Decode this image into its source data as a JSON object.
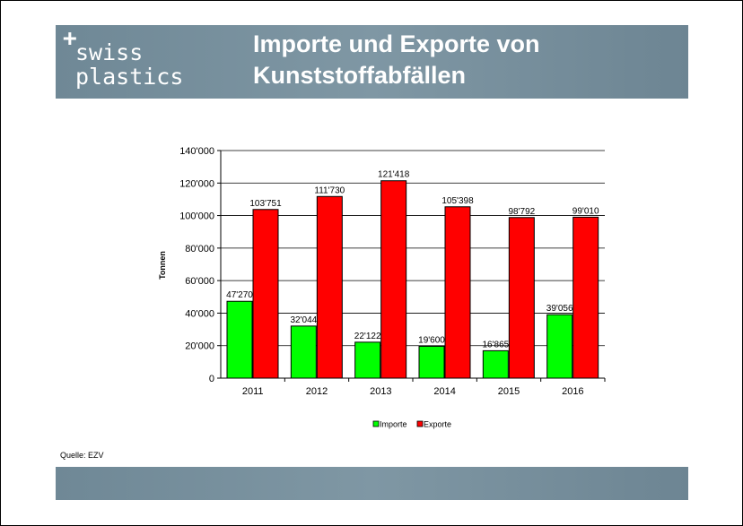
{
  "header": {
    "logo_plus": "+",
    "logo_line1": "swiss",
    "logo_line2": "plastics",
    "title": "Importe und Exporte von Kunststoffabfällen"
  },
  "source": "Quelle: EZV",
  "colors": {
    "importe": "#00ff00",
    "exporte": "#ff0000",
    "header": "#758d9a"
  },
  "chart_data": {
    "type": "bar",
    "categories": [
      "2011",
      "2012",
      "2013",
      "2014",
      "2015",
      "2016"
    ],
    "series": [
      {
        "name": "Importe",
        "values": [
          47270,
          32044,
          22122,
          19600,
          16865,
          39056
        ],
        "labels": [
          "47'270",
          "32'044",
          "22'122",
          "19'600",
          "16'865",
          "39'056"
        ]
      },
      {
        "name": "Exporte",
        "values": [
          103751,
          111730,
          121418,
          105398,
          98792,
          99010
        ],
        "labels": [
          "103'751",
          "111'730",
          "121'418",
          "105'398",
          "98'792",
          "99'010"
        ]
      }
    ],
    "ylabel": "Tonnen",
    "ylim": [
      0,
      140000
    ],
    "yticks": [
      0,
      20000,
      40000,
      60000,
      80000,
      100000,
      120000,
      140000
    ],
    "ytick_labels": [
      "0",
      "20'000",
      "40'000",
      "60'000",
      "80'000",
      "100'000",
      "120'000",
      "140'000"
    ],
    "grid": true,
    "legend_position": "bottom"
  }
}
